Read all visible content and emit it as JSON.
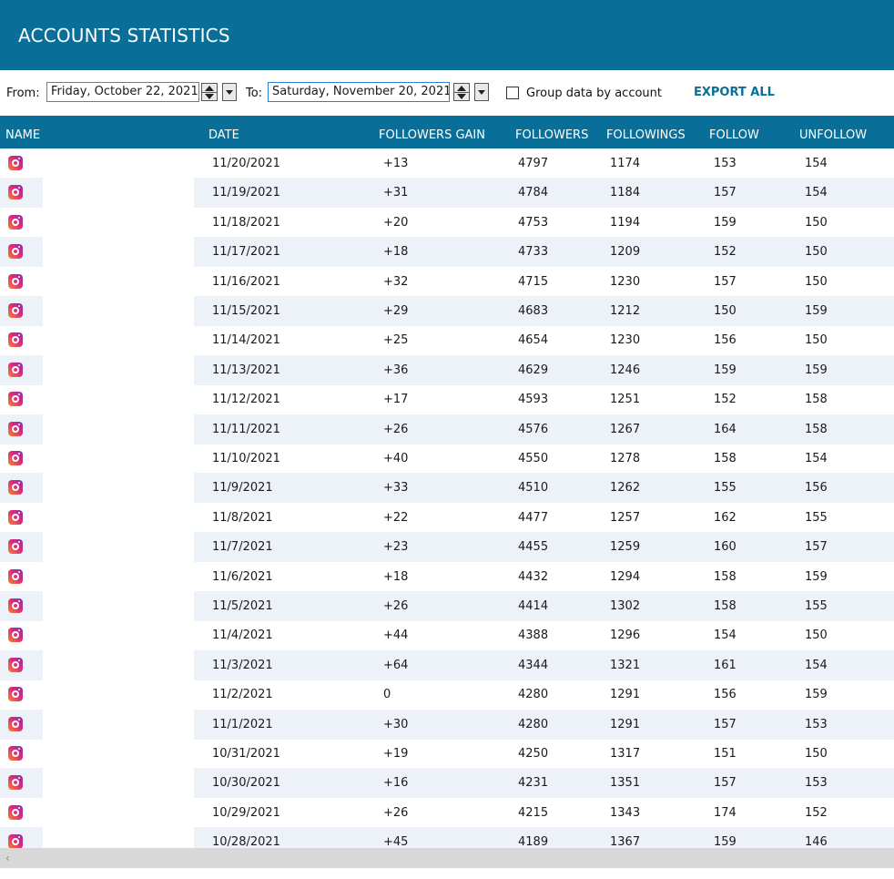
{
  "window": {
    "title": "ACCOUNTS STATISTICS"
  },
  "filters": {
    "from_label": "From:",
    "from_value": "Friday, October 22, 2021",
    "to_label": "To:",
    "to_value": "Saturday, November 20, 2021",
    "group_label": "Group data by account",
    "group_checked": false,
    "export_label": "EXPORT ALL"
  },
  "table": {
    "columns": [
      "NAME",
      "DATE",
      "FOLLOWERS GAIN",
      "FOLLOWERS",
      "FOLLOWINGS",
      "FOLLOW",
      "UNFOLLOW"
    ],
    "row_icon": "instagram-icon",
    "rows": [
      {
        "date": "11/20/2021",
        "gain": "+13",
        "followers": "4797",
        "followings": "1174",
        "follow": "153",
        "unfollow": "154"
      },
      {
        "date": "11/19/2021",
        "gain": "+31",
        "followers": "4784",
        "followings": "1184",
        "follow": "157",
        "unfollow": "154"
      },
      {
        "date": "11/18/2021",
        "gain": "+20",
        "followers": "4753",
        "followings": "1194",
        "follow": "159",
        "unfollow": "150"
      },
      {
        "date": "11/17/2021",
        "gain": "+18",
        "followers": "4733",
        "followings": "1209",
        "follow": "152",
        "unfollow": "150"
      },
      {
        "date": "11/16/2021",
        "gain": "+32",
        "followers": "4715",
        "followings": "1230",
        "follow": "157",
        "unfollow": "150"
      },
      {
        "date": "11/15/2021",
        "gain": "+29",
        "followers": "4683",
        "followings": "1212",
        "follow": "150",
        "unfollow": "159"
      },
      {
        "date": "11/14/2021",
        "gain": "+25",
        "followers": "4654",
        "followings": "1230",
        "follow": "156",
        "unfollow": "150"
      },
      {
        "date": "11/13/2021",
        "gain": "+36",
        "followers": "4629",
        "followings": "1246",
        "follow": "159",
        "unfollow": "159"
      },
      {
        "date": "11/12/2021",
        "gain": "+17",
        "followers": "4593",
        "followings": "1251",
        "follow": "152",
        "unfollow": "158"
      },
      {
        "date": "11/11/2021",
        "gain": "+26",
        "followers": "4576",
        "followings": "1267",
        "follow": "164",
        "unfollow": "158"
      },
      {
        "date": "11/10/2021",
        "gain": "+40",
        "followers": "4550",
        "followings": "1278",
        "follow": "158",
        "unfollow": "154"
      },
      {
        "date": "11/9/2021",
        "gain": "+33",
        "followers": "4510",
        "followings": "1262",
        "follow": "155",
        "unfollow": "156"
      },
      {
        "date": "11/8/2021",
        "gain": "+22",
        "followers": "4477",
        "followings": "1257",
        "follow": "162",
        "unfollow": "155"
      },
      {
        "date": "11/7/2021",
        "gain": "+23",
        "followers": "4455",
        "followings": "1259",
        "follow": "160",
        "unfollow": "157"
      },
      {
        "date": "11/6/2021",
        "gain": "+18",
        "followers": "4432",
        "followings": "1294",
        "follow": "158",
        "unfollow": "159"
      },
      {
        "date": "11/5/2021",
        "gain": "+26",
        "followers": "4414",
        "followings": "1302",
        "follow": "158",
        "unfollow": "155"
      },
      {
        "date": "11/4/2021",
        "gain": "+44",
        "followers": "4388",
        "followings": "1296",
        "follow": "154",
        "unfollow": "150"
      },
      {
        "date": "11/3/2021",
        "gain": "+64",
        "followers": "4344",
        "followings": "1321",
        "follow": "161",
        "unfollow": "154"
      },
      {
        "date": "11/2/2021",
        "gain": "0",
        "followers": "4280",
        "followings": "1291",
        "follow": "156",
        "unfollow": "159"
      },
      {
        "date": "11/1/2021",
        "gain": "+30",
        "followers": "4280",
        "followings": "1291",
        "follow": "157",
        "unfollow": "153"
      },
      {
        "date": "10/31/2021",
        "gain": "+19",
        "followers": "4250",
        "followings": "1317",
        "follow": "151",
        "unfollow": "150"
      },
      {
        "date": "10/30/2021",
        "gain": "+16",
        "followers": "4231",
        "followings": "1351",
        "follow": "157",
        "unfollow": "153"
      },
      {
        "date": "10/29/2021",
        "gain": "+26",
        "followers": "4215",
        "followings": "1343",
        "follow": "174",
        "unfollow": "152"
      },
      {
        "date": "10/28/2021",
        "gain": "+45",
        "followers": "4189",
        "followings": "1367",
        "follow": "159",
        "unfollow": "146"
      }
    ]
  },
  "scrollbar": {
    "left_arrow": "‹"
  },
  "colors": {
    "header_bg": "#0a6f98",
    "alt_row_bg": "#edf2f9",
    "accent": "#0a6f98"
  }
}
